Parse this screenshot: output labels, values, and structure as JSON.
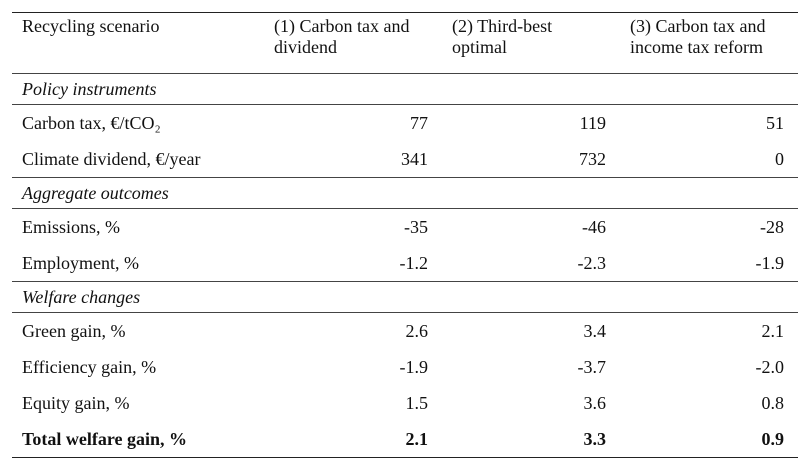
{
  "table": {
    "header": [
      "Recycling scenario",
      "(1) Carbon tax and dividend",
      "(2) Third-best optimal",
      "(3) Carbon tax and income tax reform"
    ],
    "sections": [
      {
        "title": "Policy instruments",
        "rows": [
          [
            "Carbon tax, €/tCO₂",
            "77",
            "119",
            "51"
          ],
          [
            "Climate dividend, €/year",
            "341",
            "732",
            "0"
          ]
        ]
      },
      {
        "title": "Aggregate outcomes",
        "rows": [
          [
            "Emissions, %",
            "-35",
            "-46",
            "-28"
          ],
          [
            "Employment, %",
            "-1.2",
            "-2.3",
            "-1.9"
          ]
        ]
      },
      {
        "title": "Welfare changes",
        "rows": [
          [
            "Green gain, %",
            "2.6",
            "3.4",
            "2.1"
          ],
          [
            "Efficiency gain, %",
            "-1.9",
            "-3.7",
            "-2.0"
          ],
          [
            "Equity gain, %",
            "1.5",
            "3.6",
            "0.8"
          ],
          [
            "Total welfare gain, %",
            "2.1",
            "3.3",
            "0.9"
          ]
        ]
      }
    ]
  }
}
